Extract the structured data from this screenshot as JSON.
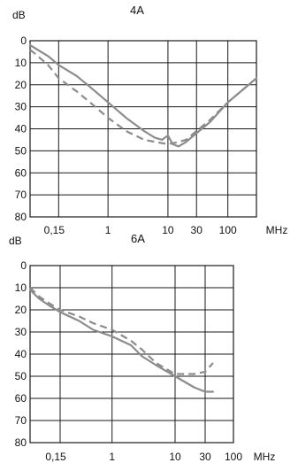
{
  "chart_data": [
    {
      "type": "line",
      "title": "4A",
      "ylabel": "dB",
      "xlabel": "MHz",
      "y_tick_labels": [
        "0",
        "10",
        "20",
        "30",
        "40",
        "50",
        "60",
        "70",
        "80"
      ],
      "x_tick_labels": [
        "0,15",
        "1",
        "10",
        "30",
        "100"
      ],
      "ylim": [
        0,
        80
      ],
      "yaxis_inverted": true,
      "xscale": "log",
      "xlim": [
        0.05,
        300
      ],
      "series": [
        {
          "style": "solid",
          "x": [
            0.05,
            0.1,
            0.15,
            0.3,
            0.5,
            1,
            2,
            4,
            6,
            8,
            10,
            12,
            15,
            20,
            30,
            50,
            100,
            300
          ],
          "y": [
            2,
            7,
            11,
            16,
            21,
            28,
            35,
            41,
            44,
            45,
            43,
            47,
            48,
            46,
            42,
            37,
            28,
            17
          ]
        },
        {
          "style": "dashed",
          "x": [
            0.05,
            0.1,
            0.15,
            0.3,
            0.5,
            1,
            2,
            4,
            10,
            15,
            20,
            30,
            50,
            100,
            300
          ],
          "y": [
            4,
            11,
            17,
            23,
            28,
            35,
            41,
            45,
            47,
            46,
            45,
            41,
            36,
            28,
            17
          ]
        }
      ],
      "grid": true
    },
    {
      "type": "line",
      "title": "6A",
      "ylabel": "dB",
      "xlabel": "MHz",
      "y_tick_labels": [
        "0",
        "10",
        "20",
        "30",
        "40",
        "50",
        "60",
        "70",
        "80"
      ],
      "x_tick_labels": [
        "0,15",
        "1",
        "10",
        "30",
        "100"
      ],
      "ylim": [
        0,
        80
      ],
      "yaxis_inverted": true,
      "xscale": "log",
      "xlim": [
        0.05,
        300
      ],
      "series": [
        {
          "style": "solid",
          "x": [
            0.05,
            0.07,
            0.1,
            0.15,
            0.3,
            0.5,
            1,
            2,
            3,
            5,
            10,
            20,
            30,
            40
          ],
          "y": [
            11,
            15,
            18,
            21,
            25,
            29,
            32,
            36,
            41,
            45,
            50,
            55,
            57,
            57
          ]
        },
        {
          "style": "dashed",
          "x": [
            0.05,
            0.07,
            0.1,
            0.15,
            0.3,
            0.5,
            1,
            2,
            3,
            5,
            10,
            20,
            30,
            40
          ],
          "y": [
            10,
            14,
            17,
            20,
            23,
            26,
            29,
            34,
            38,
            44,
            49,
            49,
            48,
            44
          ]
        }
      ],
      "grid": true
    }
  ]
}
